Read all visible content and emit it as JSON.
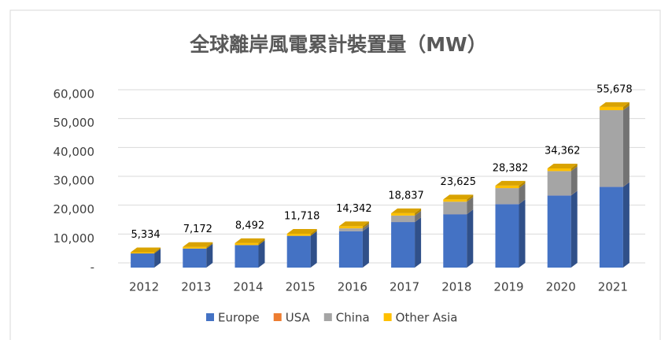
{
  "chart_data": {
    "type": "bar3d_stacked",
    "title": "全球離岸風電累計裝置量（MW）",
    "categories": [
      "2012",
      "2013",
      "2014",
      "2015",
      "2016",
      "2017",
      "2018",
      "2019",
      "2020",
      "2021"
    ],
    "series": [
      {
        "name": "Europe",
        "color": "#4472c4",
        "values": [
          4900,
          6600,
          7800,
          11000,
          12600,
          15800,
          18500,
          22000,
          25000,
          28000
        ]
      },
      {
        "name": "USA",
        "color": "#ed7d31",
        "values": [
          0,
          0,
          0,
          0,
          0,
          30,
          30,
          30,
          42,
          42
        ]
      },
      {
        "name": "China",
        "color": "#a5a5a5",
        "values": [
          0,
          0,
          0,
          0,
          1000,
          2200,
          4300,
          5500,
          8400,
          26500
        ]
      },
      {
        "name": "Other Asia",
        "color": "#ffc000",
        "values": [
          434,
          572,
          692,
          718,
          742,
          807,
          795,
          852,
          920,
          1136
        ]
      }
    ],
    "totals": [
      5334,
      7172,
      8492,
      11718,
      14342,
      18837,
      23625,
      28382,
      34362,
      55678
    ],
    "total_labels": [
      "5,334",
      "7,172",
      "8,492",
      "11,718",
      "14,342",
      "18,837",
      "23,625",
      "28,382",
      "34,362",
      "55,678"
    ],
    "ylim": [
      0,
      60000
    ],
    "yticks": [
      {
        "value": 0,
        "label": "-"
      },
      {
        "value": 10000,
        "label": "10,000"
      },
      {
        "value": 20000,
        "label": "20,000"
      },
      {
        "value": 30000,
        "label": "30,000"
      },
      {
        "value": 40000,
        "label": "40,000"
      },
      {
        "value": 50000,
        "label": "50,000"
      },
      {
        "value": 60000,
        "label": "60,000"
      }
    ],
    "grid": true,
    "legend": "bottom"
  }
}
